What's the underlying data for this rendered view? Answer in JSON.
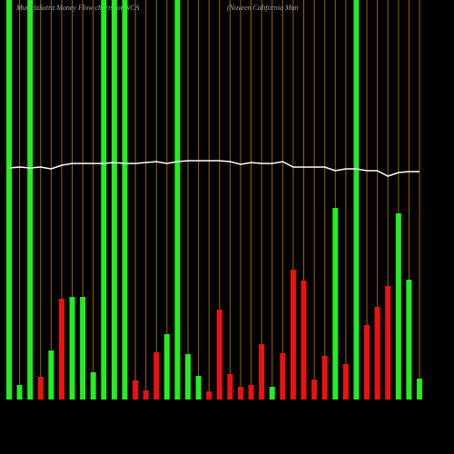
{
  "chart_data": {
    "type": "bar",
    "title": "MunafaSutra  Money Flow  charts for NCA",
    "subtitle": "(Nuveen  California  Mun",
    "categories": [
      null,
      null,
      null,
      null,
      null,
      null,
      null,
      null,
      null,
      null,
      null,
      null,
      null,
      null,
      null,
      null,
      null,
      null,
      null,
      null,
      null,
      null,
      null,
      null,
      null,
      null,
      null,
      null,
      null,
      null,
      null,
      null,
      null,
      null,
      null,
      null,
      null,
      null,
      null,
      null
    ],
    "values": [
      440,
      16,
      440,
      25,
      54,
      111,
      113,
      113,
      30,
      440,
      440,
      440,
      21,
      10,
      52,
      72,
      440,
      50,
      26,
      9,
      99,
      28,
      14,
      16,
      61,
      14,
      51,
      143,
      131,
      22,
      48,
      211,
      39,
      440,
      82,
      102,
      125,
      205,
      132,
      23
    ],
    "colors": [
      "#22ee22",
      "#22ee22",
      "#22ee22",
      "#ee1111",
      "#22ee22",
      "#ee1111",
      "#22ee22",
      "#22ee22",
      "#22ee22",
      "#22ee22",
      "#22ee22",
      "#22ee22",
      "#ee1111",
      "#ee1111",
      "#ee1111",
      "#22ee22",
      "#22ee22",
      "#22ee22",
      "#22ee22",
      "#ee1111",
      "#ee1111",
      "#ee1111",
      "#ee1111",
      "#ee1111",
      "#ee1111",
      "#22ee22",
      "#ee1111",
      "#ee1111",
      "#ee1111",
      "#ee1111",
      "#ee1111",
      "#22ee22",
      "#ee1111",
      "#22ee22",
      "#ee1111",
      "#ee1111",
      "#ee1111",
      "#22ee22",
      "#22ee22",
      "#22ee22"
    ],
    "line": {
      "color": "#ffffff",
      "values": [
        255,
        256,
        255,
        256,
        254,
        258,
        260,
        260,
        260,
        260,
        261,
        260,
        260,
        261,
        262,
        260,
        262,
        263,
        263,
        263,
        263,
        262,
        259,
        261,
        260,
        260,
        262,
        256,
        256,
        256,
        256,
        252,
        254,
        254,
        252,
        252,
        246,
        250,
        251,
        251
      ]
    },
    "ylim": [
      0,
      440
    ]
  }
}
